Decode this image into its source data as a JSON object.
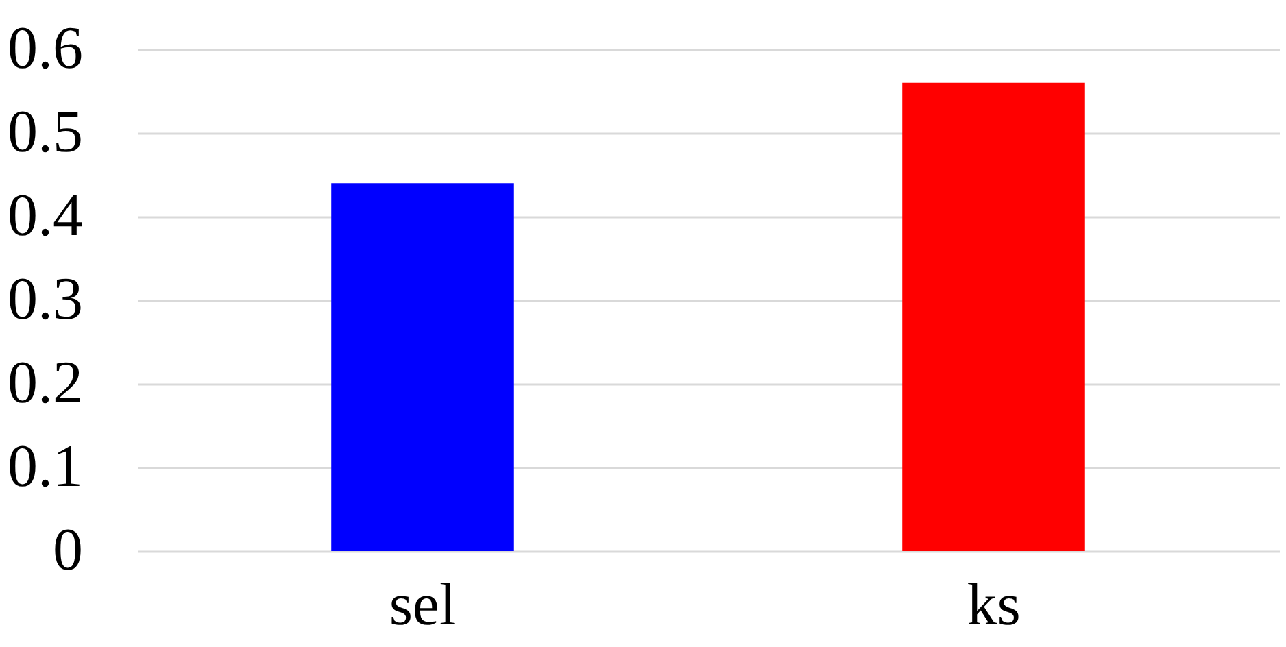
{
  "chart_data": {
    "type": "bar",
    "categories": [
      "sel",
      "ks"
    ],
    "values": [
      0.44,
      0.56
    ],
    "colors": [
      "#0000ff",
      "#ff0000"
    ],
    "ylim": [
      0,
      0.6
    ],
    "yticks": [
      0,
      0.1,
      0.2,
      0.3,
      0.4,
      0.5,
      0.6
    ],
    "grid": "y",
    "legend": false
  }
}
